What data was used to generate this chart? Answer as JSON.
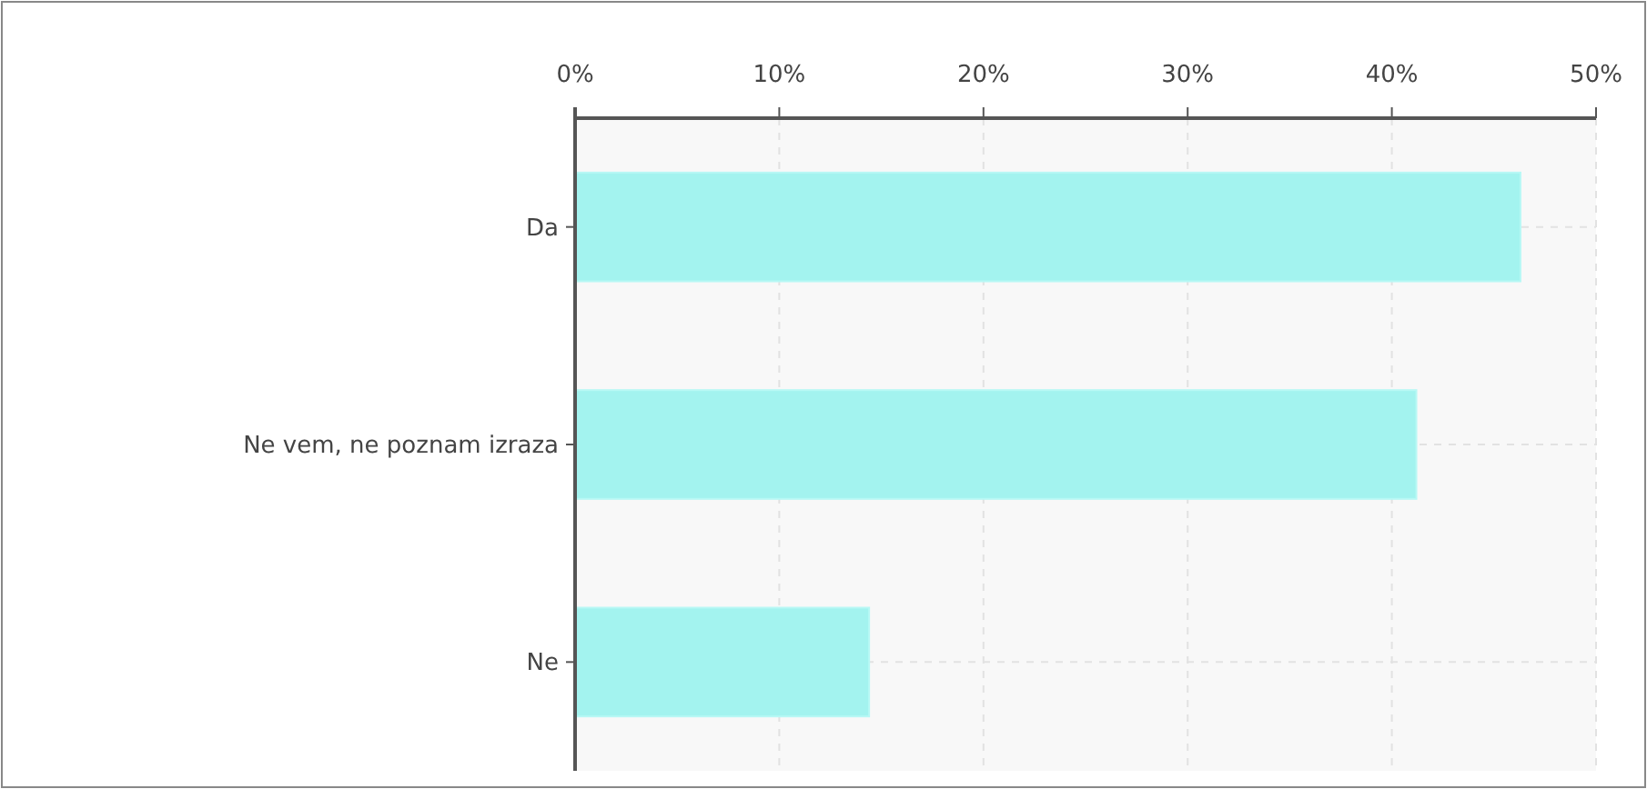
{
  "chart_data": {
    "type": "bar",
    "orientation": "horizontal",
    "categories": [
      "Da",
      "Ne vem, ne poznam izraza",
      "Ne"
    ],
    "values": [
      46.3,
      41.2,
      14.4
    ],
    "color": "#a3f3ef",
    "xlim": [
      0,
      50
    ],
    "xticks": [
      {
        "value": 0,
        "label": "0%"
      },
      {
        "value": 10,
        "label": "10%"
      },
      {
        "value": 20,
        "label": "20%"
      },
      {
        "value": 30,
        "label": "30%"
      },
      {
        "value": 40,
        "label": "40%"
      },
      {
        "value": 50,
        "label": "50%"
      }
    ],
    "grid": true
  }
}
